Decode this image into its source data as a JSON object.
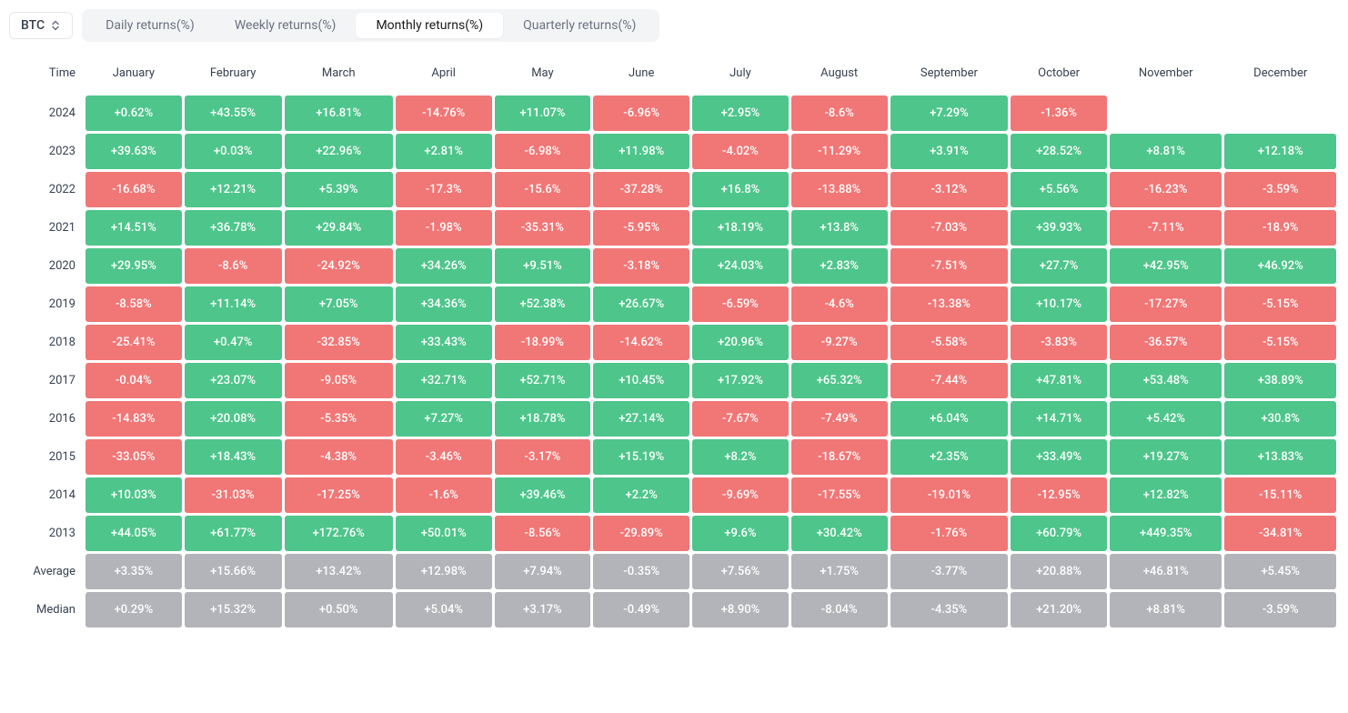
{
  "symbol": "BTC",
  "tabs": [
    {
      "label": "Daily returns(%)",
      "active": false
    },
    {
      "label": "Weekly returns(%)",
      "active": false
    },
    {
      "label": "Monthly returns(%)",
      "active": true
    },
    {
      "label": "Quarterly returns(%)",
      "active": false
    }
  ],
  "columns": [
    "Time",
    "January",
    "February",
    "March",
    "April",
    "May",
    "June",
    "July",
    "August",
    "September",
    "October",
    "November",
    "December"
  ],
  "colors": {
    "positive": "#4ec58b",
    "negative": "#f17676",
    "neutral": "#b3b4b9",
    "background": "#ffffff",
    "tab_bg": "#f3f4f6",
    "text": "#374151"
  },
  "rows": [
    {
      "label": "2024",
      "type": "data",
      "cells": [
        "+0.62%",
        "+43.55%",
        "+16.81%",
        "-14.76%",
        "+11.07%",
        "-6.96%",
        "+2.95%",
        "-8.6%",
        "+7.29%",
        "-1.36%",
        null,
        null
      ]
    },
    {
      "label": "2023",
      "type": "data",
      "cells": [
        "+39.63%",
        "+0.03%",
        "+22.96%",
        "+2.81%",
        "-6.98%",
        "+11.98%",
        "-4.02%",
        "-11.29%",
        "+3.91%",
        "+28.52%",
        "+8.81%",
        "+12.18%"
      ]
    },
    {
      "label": "2022",
      "type": "data",
      "cells": [
        "-16.68%",
        "+12.21%",
        "+5.39%",
        "-17.3%",
        "-15.6%",
        "-37.28%",
        "+16.8%",
        "-13.88%",
        "-3.12%",
        "+5.56%",
        "-16.23%",
        "-3.59%"
      ]
    },
    {
      "label": "2021",
      "type": "data",
      "cells": [
        "+14.51%",
        "+36.78%",
        "+29.84%",
        "-1.98%",
        "-35.31%",
        "-5.95%",
        "+18.19%",
        "+13.8%",
        "-7.03%",
        "+39.93%",
        "-7.11%",
        "-18.9%"
      ]
    },
    {
      "label": "2020",
      "type": "data",
      "cells": [
        "+29.95%",
        "-8.6%",
        "-24.92%",
        "+34.26%",
        "+9.51%",
        "-3.18%",
        "+24.03%",
        "+2.83%",
        "-7.51%",
        "+27.7%",
        "+42.95%",
        "+46.92%"
      ]
    },
    {
      "label": "2019",
      "type": "data",
      "cells": [
        "-8.58%",
        "+11.14%",
        "+7.05%",
        "+34.36%",
        "+52.38%",
        "+26.67%",
        "-6.59%",
        "-4.6%",
        "-13.38%",
        "+10.17%",
        "-17.27%",
        "-5.15%"
      ]
    },
    {
      "label": "2018",
      "type": "data",
      "cells": [
        "-25.41%",
        "+0.47%",
        "-32.85%",
        "+33.43%",
        "-18.99%",
        "-14.62%",
        "+20.96%",
        "-9.27%",
        "-5.58%",
        "-3.83%",
        "-36.57%",
        "-5.15%"
      ]
    },
    {
      "label": "2017",
      "type": "data",
      "cells": [
        "-0.04%",
        "+23.07%",
        "-9.05%",
        "+32.71%",
        "+52.71%",
        "+10.45%",
        "+17.92%",
        "+65.32%",
        "-7.44%",
        "+47.81%",
        "+53.48%",
        "+38.89%"
      ]
    },
    {
      "label": "2016",
      "type": "data",
      "cells": [
        "-14.83%",
        "+20.08%",
        "-5.35%",
        "+7.27%",
        "+18.78%",
        "+27.14%",
        "-7.67%",
        "-7.49%",
        "+6.04%",
        "+14.71%",
        "+5.42%",
        "+30.8%"
      ]
    },
    {
      "label": "2015",
      "type": "data",
      "cells": [
        "-33.05%",
        "+18.43%",
        "-4.38%",
        "-3.46%",
        "-3.17%",
        "+15.19%",
        "+8.2%",
        "-18.67%",
        "+2.35%",
        "+33.49%",
        "+19.27%",
        "+13.83%"
      ]
    },
    {
      "label": "2014",
      "type": "data",
      "cells": [
        "+10.03%",
        "-31.03%",
        "-17.25%",
        "-1.6%",
        "+39.46%",
        "+2.2%",
        "-9.69%",
        "-17.55%",
        "-19.01%",
        "-12.95%",
        "+12.82%",
        "-15.11%"
      ]
    },
    {
      "label": "2013",
      "type": "data",
      "cells": [
        "+44.05%",
        "+61.77%",
        "+172.76%",
        "+50.01%",
        "-8.56%",
        "-29.89%",
        "+9.6%",
        "+30.42%",
        "-1.76%",
        "+60.79%",
        "+449.35%",
        "-34.81%"
      ]
    },
    {
      "label": "Average",
      "type": "summary",
      "cells": [
        "+3.35%",
        "+15.66%",
        "+13.42%",
        "+12.98%",
        "+7.94%",
        "-0.35%",
        "+7.56%",
        "+1.75%",
        "-3.77%",
        "+20.88%",
        "+46.81%",
        "+5.45%"
      ]
    },
    {
      "label": "Median",
      "type": "summary",
      "cells": [
        "+0.29%",
        "+15.32%",
        "+0.50%",
        "+5.04%",
        "+3.17%",
        "-0.49%",
        "+8.90%",
        "-8.04%",
        "-4.35%",
        "+21.20%",
        "+8.81%",
        "-3.59%"
      ]
    }
  ]
}
